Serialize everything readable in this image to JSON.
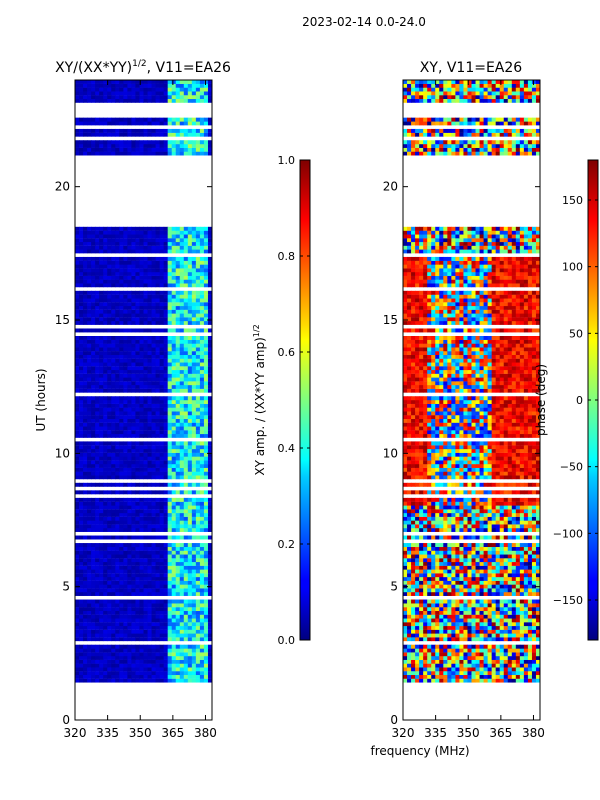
{
  "figure": {
    "suptitle": "2023-02-14 0.0-24.0",
    "shared_xlabel": "frequency (MHz)"
  },
  "chart_data": [
    {
      "type": "heatmap",
      "title": "XY/(XX*YY)",
      "title_exponent": "1/2",
      "title_suffix": ", V11=EA26",
      "xlabel": "",
      "ylabel": "UT (hours)",
      "xlim": [
        320,
        383
      ],
      "ylim": [
        0,
        24
      ],
      "xticks": [
        320,
        335,
        350,
        365,
        380
      ],
      "yticks": [
        0,
        5,
        10,
        15,
        20
      ],
      "colorbar": {
        "label": "XY amp. / (XX*YY amp)",
        "label_exponent": "1/2",
        "range": [
          0.0,
          1.0
        ],
        "ticks": [
          "0.0",
          "0.2",
          "0.4",
          "0.6",
          "0.8",
          "1.0"
        ],
        "colormap": "jet"
      },
      "data_gaps_hours": [
        [
          0,
          1.35
        ],
        [
          21.2,
          18.55
        ]
      ],
      "description_values": {
        "low_band_level": 0.05,
        "high_band_range_mhz": [
          361,
          381
        ],
        "high_band_level": 0.35
      }
    },
    {
      "type": "heatmap",
      "title": "XY, V11=EA26",
      "xlabel": "frequency (MHz)",
      "ylabel": "",
      "xlim": [
        320,
        383
      ],
      "ylim": [
        0,
        24
      ],
      "xticks": [
        320,
        335,
        350,
        365,
        380
      ],
      "yticks": [
        0,
        5,
        10,
        15,
        20
      ],
      "colorbar": {
        "label": "phase (deg)",
        "range": [
          -180,
          180
        ],
        "ticks": [
          "−150",
          "−100",
          "−50",
          "0",
          "50",
          "100",
          "150"
        ],
        "colormap": "jet"
      },
      "data_gaps_hours": [
        [
          0,
          1.35
        ],
        [
          21.2,
          18.55
        ]
      ]
    }
  ],
  "colors": {
    "jet": [
      "#00007f",
      "#0000ff",
      "#007fff",
      "#00ffff",
      "#7fff7f",
      "#ffff00",
      "#ff7f00",
      "#ff0000",
      "#7f0000"
    ]
  }
}
